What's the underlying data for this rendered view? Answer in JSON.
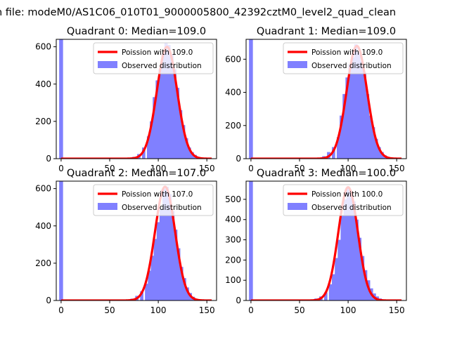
{
  "suptitle": "n file: modeM0/AS1C06_010T01_9000005800_42392cztM0_level2_quad_clean",
  "colors": {
    "poisson": "#ff0000",
    "observed": "#8080ff",
    "zero_bar": "#8080ff"
  },
  "chart_data": [
    {
      "type": "bar",
      "title": "Quadrant 0: Median=109.0",
      "xlim": [
        -5,
        160
      ],
      "ylim": [
        0,
        640
      ],
      "xticks": [
        0,
        50,
        100,
        150
      ],
      "yticks": [
        0,
        200,
        400,
        600
      ],
      "legend": [
        "Poission with 109.0",
        "Observed distribution"
      ],
      "legend_position": "upper-right",
      "zero_spike": 640,
      "mean": 109,
      "series": [
        {
          "name": "Poission with 109.0",
          "type": "line",
          "mean": 109,
          "peak": 600
        },
        {
          "name": "Observed distribution",
          "type": "histogram",
          "bins": [
            [
              70,
              5
            ],
            [
              75,
              10
            ],
            [
              80,
              25
            ],
            [
              85,
              60
            ],
            [
              90,
              120
            ],
            [
              93,
              200
            ],
            [
              96,
              330
            ],
            [
              99,
              420
            ],
            [
              102,
              480
            ],
            [
              105,
              560
            ],
            [
              108,
              620
            ],
            [
              111,
              610
            ],
            [
              114,
              560
            ],
            [
              117,
              480
            ],
            [
              120,
              380
            ],
            [
              123,
              260
            ],
            [
              126,
              180
            ],
            [
              129,
              110
            ],
            [
              132,
              60
            ],
            [
              135,
              35
            ],
            [
              138,
              20
            ],
            [
              141,
              10
            ],
            [
              144,
              5
            ]
          ]
        }
      ]
    },
    {
      "type": "bar",
      "title": "Quadrant 1: Median=109.0",
      "xlim": [
        -5,
        160
      ],
      "ylim": [
        0,
        720
      ],
      "xticks": [
        0,
        50,
        100,
        150
      ],
      "yticks": [
        0,
        200,
        400,
        600
      ],
      "legend": [
        "Poission with 109.0",
        "Observed distribution"
      ],
      "legend_position": "upper-right",
      "zero_spike": 720,
      "mean": 109,
      "series": [
        {
          "name": "Poission with 109.0",
          "type": "line",
          "mean": 109,
          "peak": 680
        },
        {
          "name": "Observed distribution",
          "type": "histogram",
          "bins": [
            [
              70,
              5
            ],
            [
              75,
              15
            ],
            [
              80,
              40
            ],
            [
              85,
              70
            ],
            [
              90,
              130
            ],
            [
              93,
              260
            ],
            [
              96,
              390
            ],
            [
              99,
              490
            ],
            [
              102,
              570
            ],
            [
              105,
              610
            ],
            [
              108,
              690
            ],
            [
              111,
              640
            ],
            [
              114,
              590
            ],
            [
              117,
              520
            ],
            [
              120,
              390
            ],
            [
              123,
              260
            ],
            [
              126,
              190
            ],
            [
              129,
              120
            ],
            [
              132,
              70
            ],
            [
              135,
              40
            ],
            [
              138,
              20
            ],
            [
              141,
              10
            ],
            [
              144,
              5
            ]
          ]
        }
      ]
    },
    {
      "type": "bar",
      "title": "Quadrant 2: Median=107.0",
      "xlim": [
        -5,
        160
      ],
      "ylim": [
        0,
        640
      ],
      "xticks": [
        0,
        50,
        100,
        150
      ],
      "yticks": [
        0,
        200,
        400,
        600
      ],
      "legend": [
        "Poission with 107.0",
        "Observed distribution"
      ],
      "legend_position": "upper-right",
      "zero_spike": 640,
      "mean": 107,
      "series": [
        {
          "name": "Poission with 107.0",
          "type": "line",
          "mean": 107,
          "peak": 610
        },
        {
          "name": "Observed distribution",
          "type": "histogram",
          "bins": [
            [
              68,
              5
            ],
            [
              73,
              10
            ],
            [
              78,
              25
            ],
            [
              83,
              50
            ],
            [
              88,
              90
            ],
            [
              91,
              160
            ],
            [
              94,
              240
            ],
            [
              97,
              330
            ],
            [
              100,
              420
            ],
            [
              103,
              490
            ],
            [
              106,
              600
            ],
            [
              109,
              610
            ],
            [
              112,
              570
            ],
            [
              115,
              480
            ],
            [
              118,
              380
            ],
            [
              121,
              280
            ],
            [
              124,
              180
            ],
            [
              127,
              120
            ],
            [
              130,
              70
            ],
            [
              133,
              40
            ],
            [
              136,
              20
            ],
            [
              139,
              10
            ],
            [
              142,
              5
            ]
          ]
        }
      ]
    },
    {
      "type": "bar",
      "title": "Quadrant 3: Median=100.0",
      "xlim": [
        -5,
        160
      ],
      "ylim": [
        0,
        590
      ],
      "xticks": [
        0,
        50,
        100,
        150
      ],
      "yticks": [
        0,
        100,
        200,
        300,
        400,
        500
      ],
      "legend": [
        "Poission with 100.0",
        "Observed distribution"
      ],
      "legend_position": "upper-right",
      "zero_spike": 590,
      "mean": 100,
      "series": [
        {
          "name": "Poission with 100.0",
          "type": "line",
          "mean": 100,
          "peak": 560
        },
        {
          "name": "Observed distribution",
          "type": "histogram",
          "bins": [
            [
              62,
              5
            ],
            [
              67,
              10
            ],
            [
              72,
              20
            ],
            [
              77,
              40
            ],
            [
              82,
              80
            ],
            [
              85,
              130
            ],
            [
              88,
              210
            ],
            [
              91,
              300
            ],
            [
              94,
              420
            ],
            [
              97,
              500
            ],
            [
              100,
              560
            ],
            [
              103,
              530
            ],
            [
              106,
              490
            ],
            [
              109,
              400
            ],
            [
              112,
              310
            ],
            [
              115,
              220
            ],
            [
              118,
              150
            ],
            [
              121,
              100
            ],
            [
              124,
              60
            ],
            [
              127,
              35
            ],
            [
              130,
              20
            ],
            [
              133,
              10
            ],
            [
              136,
              5
            ]
          ]
        }
      ]
    }
  ]
}
